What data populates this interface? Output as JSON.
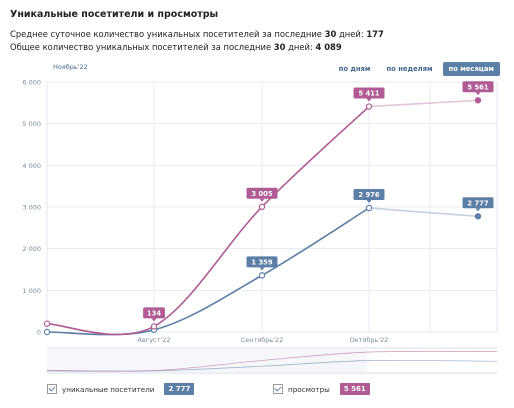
{
  "header": {
    "title": "Уникальные посетители и просмотры",
    "stat1_label": "Среднее суточное количество уникальных посетителей за последние",
    "stat1_days": "30",
    "stat1_suffix": "дней:",
    "stat1_value": "177",
    "stat2_label": "Общее количество уникальных посетителей за последние",
    "stat2_days": "30",
    "stat2_suffix": "дней:",
    "stat2_value": "4 089"
  },
  "range_label": "Ноябрь'22",
  "toggles": [
    {
      "label": "по дням",
      "active": false
    },
    {
      "label": "по неделям",
      "active": false
    },
    {
      "label": "по месяцам",
      "active": true
    }
  ],
  "legend": {
    "visitors_label": "уникальные посетители",
    "visitors_value": "2 777",
    "views_label": "просмотры",
    "views_value": "5 561"
  },
  "chart_data": {
    "type": "line",
    "x": [
      "",
      "Август'22",
      "Сентябрь'22",
      "Октябрь'22",
      ""
    ],
    "series": [
      {
        "name": "уникальные посетители",
        "color": "#5b7fa6",
        "values": [
          0,
          50,
          1359,
          2976,
          2777
        ],
        "labels": [
          "",
          "",
          "1 359",
          "2 976",
          "2 777"
        ]
      },
      {
        "name": "просмотры",
        "color": "#b05b94",
        "values": [
          200,
          134,
          3005,
          5411,
          5561
        ],
        "labels": [
          "",
          "134",
          "3 005",
          "5 411",
          "5 561"
        ]
      }
    ],
    "yticks": [
      "0",
      "1 000",
      "2 000",
      "3 000",
      "4 000",
      "5 000",
      "6 000"
    ],
    "ylim": [
      0,
      6000
    ],
    "grid": true
  }
}
